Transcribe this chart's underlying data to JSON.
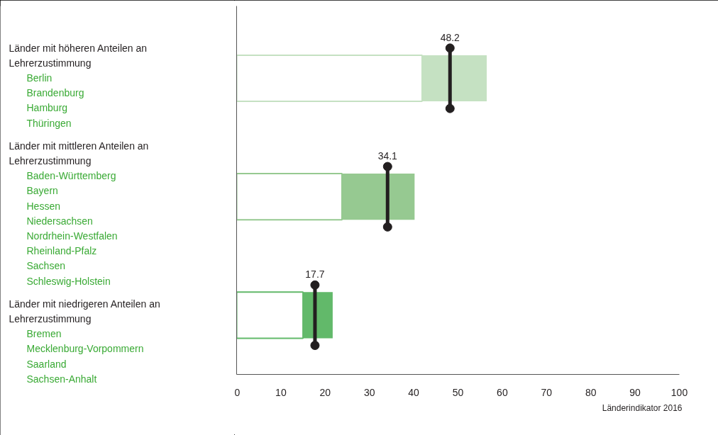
{
  "chart_data": {
    "type": "bar",
    "orientation": "horizontal",
    "stacked": true,
    "categories": [
      "Länder mit höheren Anteilen an Lehrerzustimmung",
      "Länder mit mittleren Anteilen an Lehrerzustimmung",
      "Länder mit niedrigeren Anteilen an Lehrerzustimmung"
    ],
    "series": [
      {
        "color": "#ffffff",
        "values": [
          41.9,
          23.8,
          15.0
        ]
      },
      {
        "colors": [
          "#c5e1c2",
          "#96c991",
          "#62b96a"
        ],
        "values": [
          14.6,
          16.4,
          6.7
        ]
      },
      {
        "type": "scatter",
        "color": "#231f20",
        "values": [
          48.2,
          34.1,
          17.7
        ],
        "value_labels": [
          "48.2",
          "34.1",
          "17.7"
        ]
      }
    ],
    "xlim": [
      0,
      100
    ],
    "xticks": [
      0,
      10,
      20,
      30,
      40,
      50,
      60,
      70,
      80,
      90,
      100
    ],
    "tick_labels": "x",
    "grid": false,
    "marker": "circle",
    "annotations": [
      "Berlin\nBrandenburg\nHamburg\nThüringen",
      "Baden-Württemberg\nBayern\nHessen\nNiedersachsen\nNordrhein-Westfalen\nRheinland-Pfalz\nSachsen\nSchleswig-Holstein",
      "Bremen\nMecklenburg-Vorpommern\nSaarland\nSachsen-Anhalt",
      "Länderindikator 2016"
    ]
  }
}
